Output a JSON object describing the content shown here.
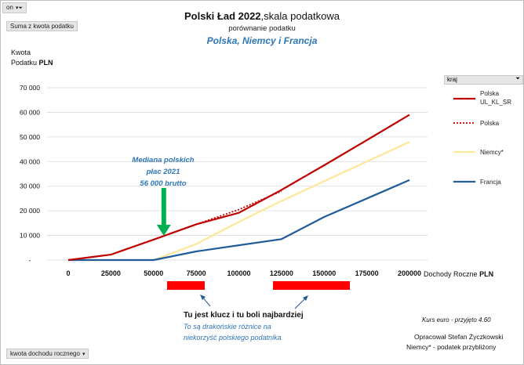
{
  "filter_on": {
    "label": "on"
  },
  "field_pill_top": {
    "label": "Suma z kwota podatku"
  },
  "field_pill_bottom": {
    "label": "kwota dochodu rocznego"
  },
  "legend_pill": {
    "label": "kraj"
  },
  "title": {
    "bold": "Polski Ład 2022",
    "rest": ",skala podatkowa"
  },
  "subtitle": "porównanie podatku",
  "subtitle2": "Polska, Niemcy i Francja",
  "y_axis_label": {
    "line1": "Kwota",
    "line2_plain": "Podatku",
    "line2_bold": "PLN"
  },
  "x_axis_label": {
    "plain": "Dochody Roczne",
    "bold": "PLN"
  },
  "median_annotation": {
    "line1": "Mediana polskich",
    "line2": "płac 2021",
    "line3": "56 000  brutto"
  },
  "note": {
    "bold": "Tu jest klucz i tu boli najbardziej",
    "line2": "To są drakońskie różnice na",
    "line3": "niekorzyść polskiego podatnika"
  },
  "kurs": "Kurs euro - przyjęto  4.60",
  "author": {
    "line1": "Opracował Stefan Życzkowski",
    "line2": "Niemcy* - podatek przybliżony"
  },
  "chart_data": {
    "type": "line",
    "xlim": [
      0,
      200000
    ],
    "ylim": [
      0,
      70000
    ],
    "x_ticks": [
      "0",
      "25000",
      "50000",
      "75000",
      "100000",
      "125000",
      "150000",
      "175000",
      "200000"
    ],
    "y_ticks": [
      "-",
      "10 000",
      "20 000",
      "30 000",
      "40 000",
      "50 000",
      "60 000",
      "70 000"
    ],
    "grid": true,
    "legend_position": "right",
    "series": [
      {
        "name": "Polska UL_KL_SR",
        "color": "#c00000",
        "style": "solid",
        "x": [
          0,
          25000,
          50000,
          75000,
          100000,
          125000,
          150000,
          175000,
          200000
        ],
        "y": [
          0,
          2200,
          8300,
          14500,
          19200,
          28500,
          38500,
          48700,
          59000
        ]
      },
      {
        "name": "Polska",
        "color": "#c00000",
        "style": "dotted",
        "x": [
          75000,
          100000,
          125000
        ],
        "y": [
          14500,
          20500,
          28000
        ]
      },
      {
        "name": "Niemcy*",
        "color": "#ffe699",
        "style": "solid",
        "x": [
          0,
          25000,
          50000,
          75000,
          100000,
          125000,
          150000,
          175000,
          200000
        ],
        "y": [
          0,
          0,
          0,
          6500,
          15500,
          24000,
          32000,
          40000,
          48000
        ]
      },
      {
        "name": "Francja",
        "color": "#1f5c99",
        "style": "solid",
        "x": [
          0,
          25000,
          50000,
          75000,
          100000,
          125000,
          150000,
          175000,
          200000
        ],
        "y": [
          0,
          0,
          0,
          3500,
          6000,
          8500,
          17500,
          25000,
          32500
        ]
      }
    ],
    "median_x": 56000,
    "highlight_ranges": [
      [
        58000,
        80000
      ],
      [
        120000,
        165000
      ]
    ]
  }
}
